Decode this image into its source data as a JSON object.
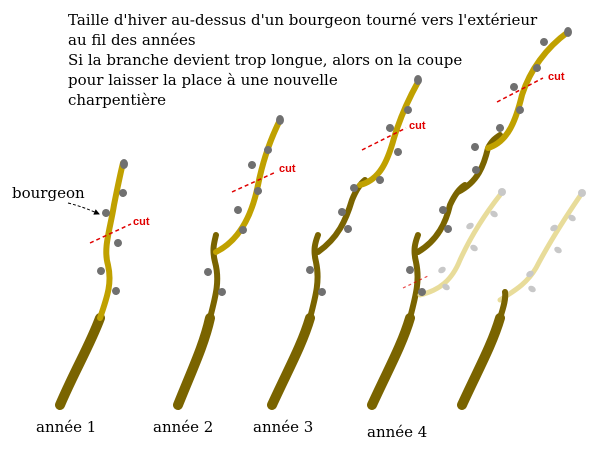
{
  "title": {
    "lines": [
      "Taille d'hiver au-dessus d'un bourgeon tourné vers l'extérieur",
      "au fil des années",
      "Si la branche devient trop longue, alors on la coupe",
      "pour laisser la place à une nouvelle",
      "charpentière"
    ]
  },
  "labels": {
    "bud": "bourgeon",
    "cut": "cut",
    "years": [
      "année 1",
      "année 2",
      "année 3",
      "année 4"
    ]
  },
  "colors": {
    "old_wood": "#7a6400",
    "new_wood": "#c0a100",
    "future_wood": "#e8dc9a",
    "bud": "#707070",
    "future_bud": "#c8c8c8",
    "cut": "#e00000"
  }
}
